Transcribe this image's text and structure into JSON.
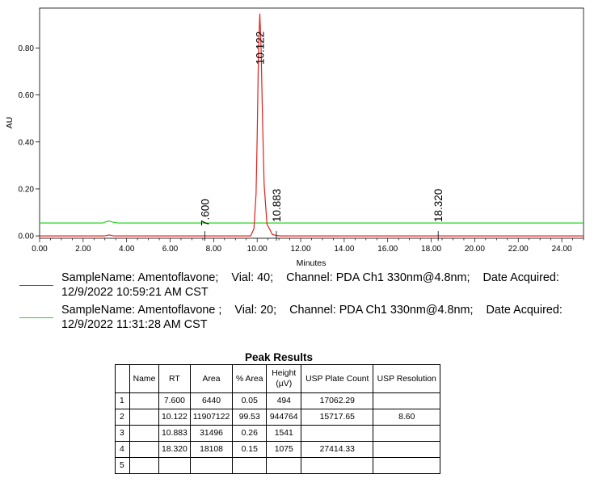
{
  "chart_data": {
    "type": "line",
    "xlabel": "Minutes",
    "ylabel": "AU",
    "xlim": [
      0,
      25
    ],
    "ylim": [
      -0.01,
      0.97
    ],
    "x_ticks": [
      "0.00",
      "2.00",
      "4.00",
      "6.00",
      "8.00",
      "10.00",
      "12.00",
      "14.00",
      "16.00",
      "18.00",
      "20.00",
      "22.00",
      "24.00"
    ],
    "y_ticks": [
      "0.00",
      "0.20",
      "0.40",
      "0.60",
      "0.80"
    ],
    "x_tick_values": [
      0,
      2,
      4,
      6,
      8,
      10,
      12,
      14,
      16,
      18,
      20,
      22,
      24
    ],
    "y_tick_values": [
      0,
      0.2,
      0.4,
      0.6,
      0.8
    ],
    "series": [
      {
        "color": "#e0201c",
        "baseline": 0.0,
        "x": [
          0,
          3.0,
          3.2,
          3.4,
          7.55,
          7.6,
          7.65,
          9.7,
          9.85,
          9.95,
          10.0,
          10.06,
          10.122,
          10.18,
          10.25,
          10.32,
          10.45,
          10.7,
          10.883,
          11.1,
          12.0,
          18.25,
          18.32,
          18.4,
          25
        ],
        "y": [
          0.0,
          0.0,
          0.004,
          0.0,
          0.0,
          0.0006,
          0.0,
          0.0,
          0.03,
          0.18,
          0.42,
          0.78,
          0.945,
          0.8,
          0.48,
          0.22,
          0.05,
          0.006,
          0.0015,
          0.0,
          0.0,
          0.0,
          0.001,
          0.0,
          0.0
        ]
      },
      {
        "color": "#1fd81f",
        "x": [
          0,
          2.9,
          3.1,
          3.2,
          3.35,
          3.6,
          25
        ],
        "y": [
          0.055,
          0.055,
          0.062,
          0.063,
          0.059,
          0.055,
          0.055
        ]
      }
    ],
    "peak_labels": [
      {
        "text": "7.600",
        "x": 7.6
      },
      {
        "text": "10.122",
        "x": 10.122
      },
      {
        "text": "10.883",
        "x": 10.883
      },
      {
        "text": "18.320",
        "x": 18.32
      }
    ]
  },
  "legend": [
    {
      "color": "#e0201c",
      "text": "SampleName: Amentoflavone;    Vial: 40;    Channel: PDA Ch1 330nm@4.8nm;    Date Acquired:\n12/9/2022 10:59:21 AM CST"
    },
    {
      "color": "#1fd81f",
      "text": "SampleName: Amentoflavone ;    Vial: 20;    Channel: PDA Ch1 330nm@4.8nm;    Date Acquired:\n12/9/2022 11:31:28 AM CST"
    }
  ],
  "table": {
    "title": "Peak Results",
    "headers": [
      "",
      "Name",
      "RT",
      "Area",
      "% Area",
      "Height\n(µV)",
      "USP Plate Count",
      "USP Resolution"
    ],
    "rows": [
      [
        "1",
        "",
        "7.600",
        "6440",
        "0.05",
        "494",
        "17062.29",
        ""
      ],
      [
        "2",
        "",
        "10.122",
        "11907122",
        "99.53",
        "944764",
        "15717.65",
        "8.60"
      ],
      [
        "3",
        "",
        "10.883",
        "31496",
        "0.26",
        "1541",
        "",
        ""
      ],
      [
        "4",
        "",
        "18.320",
        "18108",
        "0.15",
        "1075",
        "27414.33",
        ""
      ],
      [
        "5",
        "",
        "",
        "",
        "",
        "",
        "",
        ""
      ]
    ]
  }
}
